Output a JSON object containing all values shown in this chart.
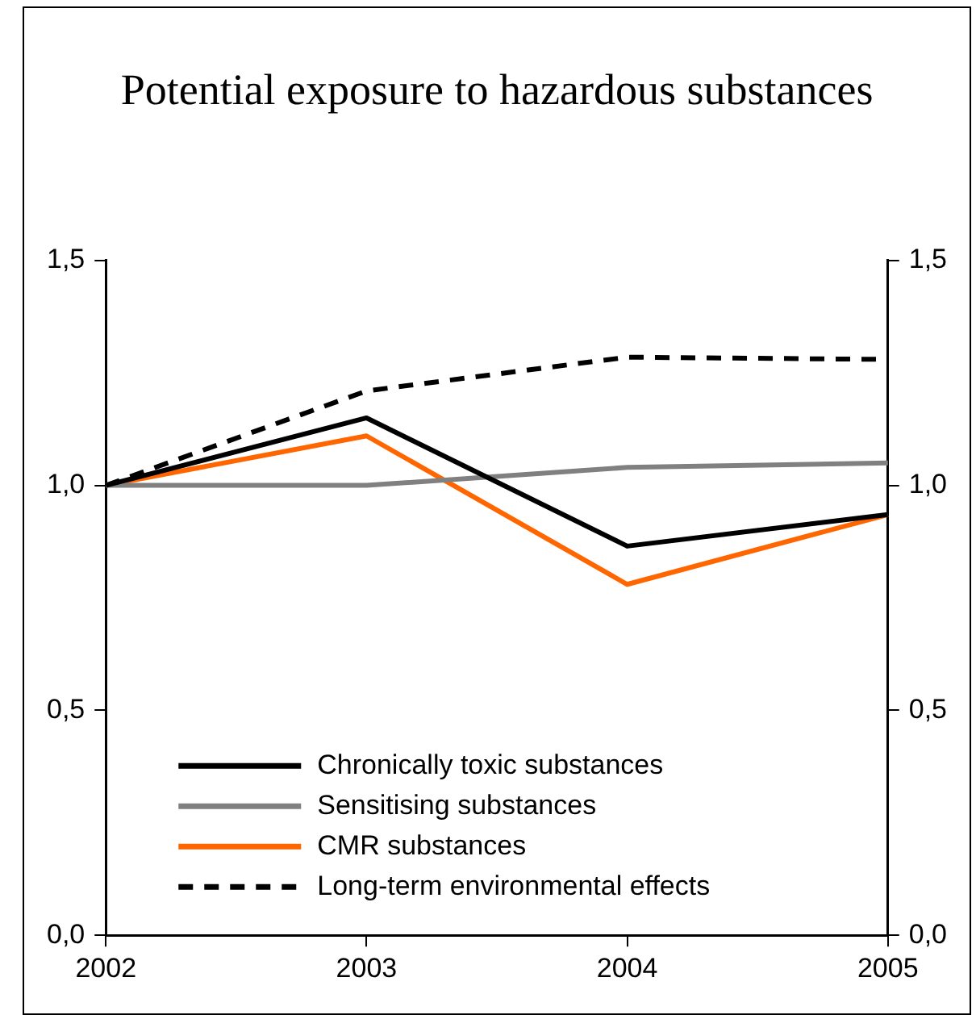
{
  "chart_data": {
    "type": "line",
    "title": "Potential exposure to hazardous substances",
    "categories": [
      "2002",
      "2003",
      "2004",
      "2005"
    ],
    "series": [
      {
        "name": "Chronically toxic substances",
        "color": "#000000",
        "values": [
          1.0,
          1.15,
          0.865,
          0.935
        ]
      },
      {
        "name": "Sensitising substances",
        "color": "#808080",
        "values": [
          1.0,
          1.0,
          1.04,
          1.05
        ]
      },
      {
        "name": "CMR substances",
        "color": "#ff6600",
        "values": [
          1.0,
          1.11,
          0.78,
          0.935
        ]
      },
      {
        "name": "Long-term environmental effects",
        "color": "#000000",
        "values": [
          1.0,
          1.21,
          1.285,
          1.28
        ],
        "line_style": "dashed"
      }
    ],
    "ylim": [
      0,
      1.5
    ],
    "yticks": [
      {
        "value": 0,
        "label": "0,0"
      },
      {
        "value": 0.5,
        "label": "0,5"
      },
      {
        "value": 1,
        "label": "1,0"
      },
      {
        "value": 1.5,
        "label": "1,5"
      }
    ],
    "y2lim": [
      0,
      1.5
    ],
    "y2ticks": [
      {
        "value": 0,
        "label": "0,0"
      },
      {
        "value": 0.5,
        "label": "0,5"
      },
      {
        "value": 1,
        "label": "1,0"
      },
      {
        "value": 1.5,
        "label": "1,5"
      }
    ],
    "grid": false,
    "legend": "bottom",
    "marker": "none",
    "line_style": "solid"
  }
}
